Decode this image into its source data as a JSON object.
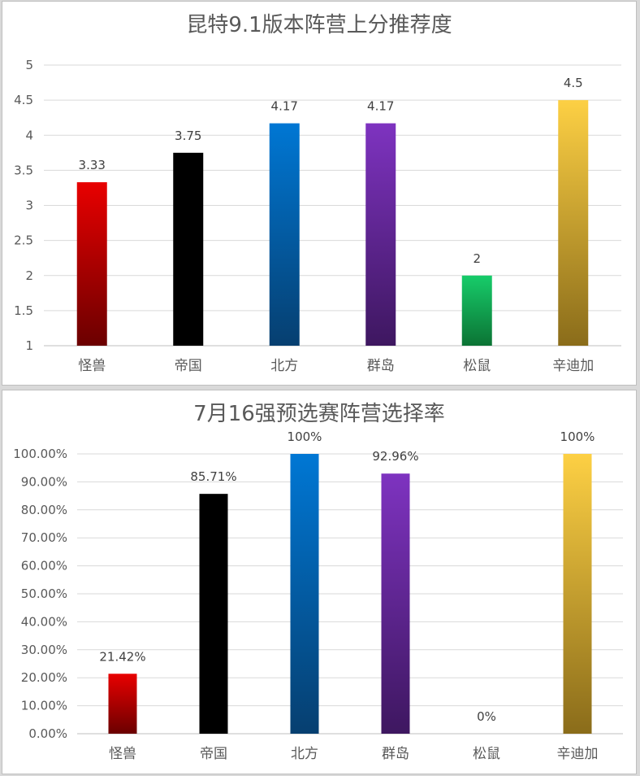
{
  "chart_data": [
    {
      "type": "bar",
      "title": "昆特9.1版本阵营上分推荐度",
      "categories": [
        "怪兽",
        "帝国",
        "北方",
        "群岛",
        "松鼠",
        "辛迪加"
      ],
      "values": [
        3.33,
        3.75,
        4.17,
        4.17,
        2,
        4.5
      ],
      "data_labels": [
        "3.33",
        "3.75",
        "4.17",
        "4.17",
        "2",
        "4.5"
      ],
      "ylim": [
        1,
        5
      ],
      "yticks": [
        1,
        1.5,
        2,
        2.5,
        3,
        3.5,
        4,
        4.5,
        5
      ],
      "ytick_labels": [
        "1",
        "1.5",
        "2",
        "2.5",
        "3",
        "3.5",
        "4",
        "4.5",
        "5"
      ],
      "grid": true,
      "legend": "none",
      "colors": [
        [
          "#e80000",
          "#6b0000"
        ],
        [
          "#000000",
          "#000000"
        ],
        [
          "#0077d4",
          "#063f70"
        ],
        [
          "#7e33c0",
          "#3e1760"
        ],
        [
          "#17cc6a",
          "#0b7334"
        ],
        [
          "#fdd044",
          "#8a6c1a"
        ]
      ]
    },
    {
      "type": "bar",
      "title": "7月16强预选赛阵营选择率",
      "categories": [
        "怪兽",
        "帝国",
        "北方",
        "群岛",
        "松鼠",
        "辛迪加"
      ],
      "values": [
        21.42,
        85.71,
        100,
        92.96,
        0,
        100
      ],
      "data_labels": [
        "21.42%",
        "85.71%",
        "100%",
        "92.96%",
        "0%",
        "100%"
      ],
      "ylim": [
        0,
        100
      ],
      "yticks": [
        0,
        10,
        20,
        30,
        40,
        50,
        60,
        70,
        80,
        90,
        100
      ],
      "ytick_labels": [
        "0.00%",
        "10.00%",
        "20.00%",
        "30.00%",
        "40.00%",
        "50.00%",
        "60.00%",
        "70.00%",
        "80.00%",
        "90.00%",
        "100.00%"
      ],
      "grid": true,
      "legend": "none",
      "colors": [
        [
          "#e80000",
          "#6b0000"
        ],
        [
          "#000000",
          "#000000"
        ],
        [
          "#0077d4",
          "#063f70"
        ],
        [
          "#7e33c0",
          "#3e1760"
        ],
        [
          "#17cc6a",
          "#0b7334"
        ],
        [
          "#fdd044",
          "#8a6c1a"
        ]
      ]
    }
  ]
}
